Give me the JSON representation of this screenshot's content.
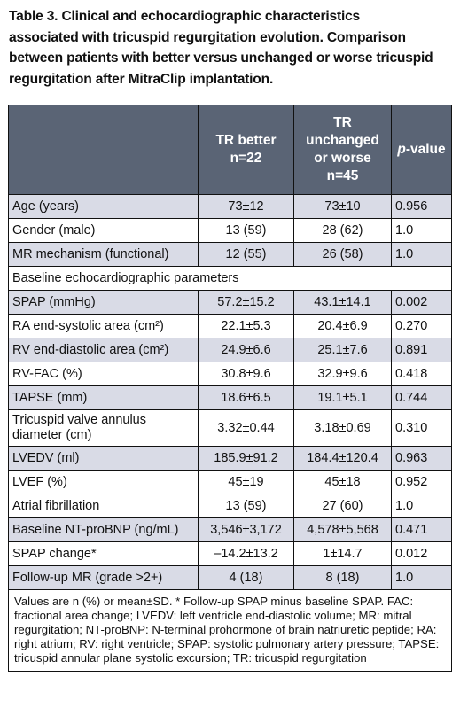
{
  "caption": {
    "line1": "Table 3. Clinical and echocardiographic characteristics",
    "line2": "associated with tricuspid regurgitation evolution. Comparison",
    "line3": "between patients with better versus unchanged or worse tricuspid",
    "line4": "regurgitation after MitraClip implantation."
  },
  "header": {
    "col1_line1": "TR better",
    "col1_line2": "n=22",
    "col2_line1": "TR",
    "col2_line2": "unchanged",
    "col2_line3": "or worse",
    "col2_line4": "n=45",
    "col3_italic": "p",
    "col3_rest": "-value"
  },
  "rows": {
    "r0": {
      "label": "Age (years)",
      "a": "73±12",
      "b": "73±10",
      "p": "0.956"
    },
    "r1": {
      "label": "Gender (male)",
      "a": "13 (59)",
      "b": "28 (62)",
      "p": "1.0"
    },
    "r2": {
      "label": "MR mechanism (functional)",
      "a": "12 (55)",
      "b": "26 (58)",
      "p": "1.0"
    },
    "r3": {
      "label": "Baseline echocardiographic parameters"
    },
    "r4": {
      "label": "SPAP (mmHg)",
      "a": "57.2±15.2",
      "b": "43.1±14.1",
      "p": "0.002"
    },
    "r5": {
      "label": "RA end-systolic area (cm²)",
      "a": "22.1±5.3",
      "b": "20.4±6.9",
      "p": "0.270"
    },
    "r6": {
      "label": "RV end-diastolic area (cm²)",
      "a": "24.9±6.6",
      "b": "25.1±7.6",
      "p": "0.891"
    },
    "r7": {
      "label": "RV-FAC (%)",
      "a": "30.8±9.6",
      "b": "32.9±9.6",
      "p": "0.418"
    },
    "r8": {
      "label": "TAPSE (mm)",
      "a": "18.6±6.5",
      "b": "19.1±5.1",
      "p": "0.744"
    },
    "r9": {
      "label_line1": "Tricuspid valve annulus",
      "label_line2": "diameter (cm)",
      "a": "3.32±0.44",
      "b": "3.18±0.69",
      "p": "0.310"
    },
    "r10": {
      "label": "LVEDV (ml)",
      "a": "185.9±91.2",
      "b": "184.4±120.4",
      "p": "0.963"
    },
    "r11": {
      "label": "LVEF (%)",
      "a": "45±19",
      "b": "45±18",
      "p": "0.952"
    },
    "r12": {
      "label": "Atrial fibrillation",
      "a": "13 (59)",
      "b": "27 (60)",
      "p": "1.0"
    },
    "r13": {
      "label": "Baseline NT-proBNP (ng/mL)",
      "a": "3,546±3,172",
      "b": "4,578±5,568",
      "p": "0.471"
    },
    "r14": {
      "label": "SPAP change*",
      "a": "–14.2±13.2",
      "b": "1±14.7",
      "p": "0.012"
    },
    "r15": {
      "label": "Follow-up MR (grade >2+)",
      "a": "4 (18)",
      "b": "8 (18)",
      "p": "1.0"
    }
  },
  "footnote": "Values are n (%) or mean±SD. * Follow-up SPAP minus baseline SPAP. FAC: fractional area change; LVEDV: left ventricle end-diastolic volume; MR: mitral regurgitation; NT-proBNP: N-terminal prohormone of brain natriuretic peptide; RA: right atrium; RV: right ventricle; SPAP: systolic pulmonary artery pressure; TAPSE: tricuspid annular plane systolic excursion; TR: tricuspid regurgitation",
  "colors": {
    "header_bg": "#5a6475",
    "shade_bg": "#d9dbe6"
  }
}
